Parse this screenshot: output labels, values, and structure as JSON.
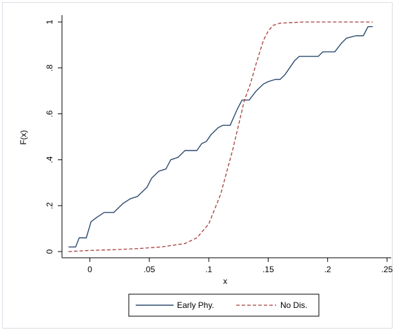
{
  "chart_data": {
    "type": "line",
    "title": "",
    "xlabel": "x",
    "ylabel": "F(x)",
    "xlim": [
      -0.02,
      0.25
    ],
    "ylim": [
      0,
      1
    ],
    "x_ticks": [
      0,
      0.05,
      0.1,
      0.15,
      0.2,
      0.25
    ],
    "x_tick_labels": [
      "0",
      ".05",
      ".1",
      ".15",
      ".2",
      ".25"
    ],
    "y_ticks": [
      0,
      0.2,
      0.4,
      0.6,
      0.8,
      1
    ],
    "y_tick_labels": [
      "0",
      ".2",
      ".4",
      ".6",
      ".8",
      "1"
    ],
    "grid": false,
    "legend_position": "bottom",
    "colors": {
      "early_phy": "#2c4a6e",
      "no_dis": "#a83a3a"
    },
    "series": [
      {
        "name": "Early Phy.",
        "style": "solid",
        "points": [
          [
            -0.018,
            0.02
          ],
          [
            -0.012,
            0.02
          ],
          [
            -0.009,
            0.06
          ],
          [
            -0.003,
            0.06
          ],
          [
            0.001,
            0.13
          ],
          [
            0.006,
            0.15
          ],
          [
            0.012,
            0.17
          ],
          [
            0.02,
            0.17
          ],
          [
            0.028,
            0.21
          ],
          [
            0.034,
            0.23
          ],
          [
            0.04,
            0.24
          ],
          [
            0.048,
            0.28
          ],
          [
            0.052,
            0.32
          ],
          [
            0.058,
            0.35
          ],
          [
            0.064,
            0.36
          ],
          [
            0.068,
            0.4
          ],
          [
            0.074,
            0.41
          ],
          [
            0.08,
            0.44
          ],
          [
            0.09,
            0.44
          ],
          [
            0.094,
            0.47
          ],
          [
            0.098,
            0.48
          ],
          [
            0.102,
            0.51
          ],
          [
            0.108,
            0.54
          ],
          [
            0.112,
            0.55
          ],
          [
            0.118,
            0.55
          ],
          [
            0.124,
            0.62
          ],
          [
            0.128,
            0.66
          ],
          [
            0.134,
            0.66
          ],
          [
            0.14,
            0.7
          ],
          [
            0.146,
            0.73
          ],
          [
            0.15,
            0.74
          ],
          [
            0.156,
            0.75
          ],
          [
            0.16,
            0.75
          ],
          [
            0.164,
            0.77
          ],
          [
            0.168,
            0.8
          ],
          [
            0.172,
            0.83
          ],
          [
            0.176,
            0.85
          ],
          [
            0.192,
            0.85
          ],
          [
            0.196,
            0.87
          ],
          [
            0.206,
            0.87
          ],
          [
            0.212,
            0.91
          ],
          [
            0.216,
            0.93
          ],
          [
            0.224,
            0.94
          ],
          [
            0.23,
            0.94
          ],
          [
            0.234,
            0.98
          ],
          [
            0.238,
            0.98
          ]
        ]
      },
      {
        "name": "No Dis.",
        "style": "dashed",
        "points": [
          [
            -0.018,
            0.0
          ],
          [
            0.0,
            0.005
          ],
          [
            0.02,
            0.008
          ],
          [
            0.04,
            0.013
          ],
          [
            0.06,
            0.02
          ],
          [
            0.08,
            0.035
          ],
          [
            0.09,
            0.06
          ],
          [
            0.1,
            0.12
          ],
          [
            0.11,
            0.25
          ],
          [
            0.12,
            0.44
          ],
          [
            0.125,
            0.55
          ],
          [
            0.13,
            0.66
          ],
          [
            0.135,
            0.73
          ],
          [
            0.14,
            0.82
          ],
          [
            0.146,
            0.92
          ],
          [
            0.15,
            0.96
          ],
          [
            0.154,
            0.985
          ],
          [
            0.16,
            0.995
          ],
          [
            0.18,
            1.0
          ],
          [
            0.238,
            1.0
          ]
        ]
      }
    ]
  }
}
